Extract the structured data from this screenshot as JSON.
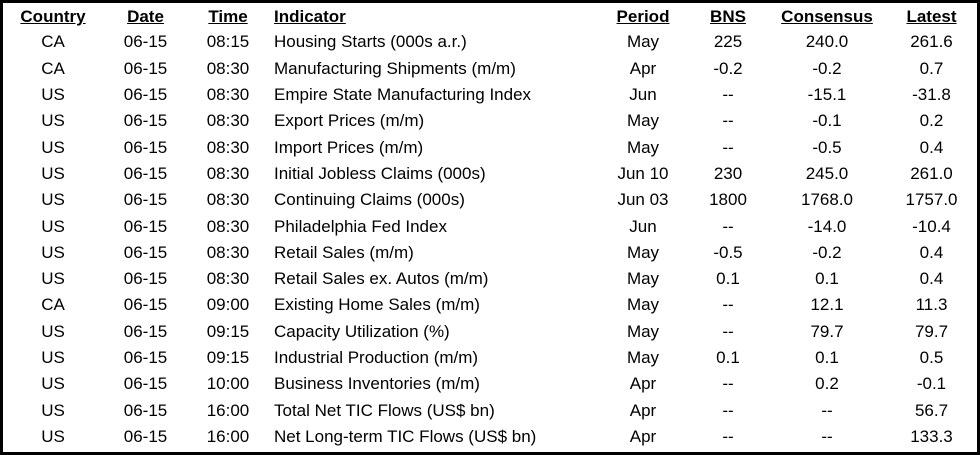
{
  "table": {
    "headers": [
      "Country",
      "Date",
      "Time",
      "Indicator",
      "Period",
      "BNS",
      "Consensus",
      "Latest"
    ],
    "rows": [
      [
        "CA",
        "06-15",
        "08:15",
        "Housing Starts (000s a.r.)",
        "May",
        "225",
        "240.0",
        "261.6"
      ],
      [
        "CA",
        "06-15",
        "08:30",
        "Manufacturing Shipments (m/m)",
        "Apr",
        "-0.2",
        "-0.2",
        "0.7"
      ],
      [
        "US",
        "06-15",
        "08:30",
        "Empire State Manufacturing Index",
        "Jun",
        "--",
        "-15.1",
        "-31.8"
      ],
      [
        "US",
        "06-15",
        "08:30",
        "Export Prices (m/m)",
        "May",
        "--",
        "-0.1",
        "0.2"
      ],
      [
        "US",
        "06-15",
        "08:30",
        "Import Prices (m/m)",
        "May",
        "--",
        "-0.5",
        "0.4"
      ],
      [
        "US",
        "06-15",
        "08:30",
        "Initial Jobless Claims (000s)",
        "Jun 10",
        "230",
        "245.0",
        "261.0"
      ],
      [
        "US",
        "06-15",
        "08:30",
        "Continuing Claims (000s)",
        "Jun 03",
        "1800",
        "1768.0",
        "1757.0"
      ],
      [
        "US",
        "06-15",
        "08:30",
        "Philadelphia Fed Index",
        "Jun",
        "--",
        "-14.0",
        "-10.4"
      ],
      [
        "US",
        "06-15",
        "08:30",
        "Retail Sales (m/m)",
        "May",
        "-0.5",
        "-0.2",
        "0.4"
      ],
      [
        "US",
        "06-15",
        "08:30",
        "Retail Sales ex. Autos (m/m)",
        "May",
        "0.1",
        "0.1",
        "0.4"
      ],
      [
        "CA",
        "06-15",
        "09:00",
        "Existing Home Sales (m/m)",
        "May",
        "--",
        "12.1",
        "11.3"
      ],
      [
        "US",
        "06-15",
        "09:15",
        "Capacity Utilization (%)",
        "May",
        "--",
        "79.7",
        "79.7"
      ],
      [
        "US",
        "06-15",
        "09:15",
        "Industrial Production (m/m)",
        "May",
        "0.1",
        "0.1",
        "0.5"
      ],
      [
        "US",
        "06-15",
        "10:00",
        "Business Inventories (m/m)",
        "Apr",
        "--",
        "0.2",
        "-0.1"
      ],
      [
        "US",
        "06-15",
        "16:00",
        "Total Net TIC Flows (US$ bn)",
        "Apr",
        "--",
        "--",
        "56.7"
      ],
      [
        "US",
        "06-15",
        "16:00",
        "Net Long-term TIC Flows (US$ bn)",
        "Apr",
        "--",
        "--",
        "133.3"
      ]
    ]
  },
  "colors": {
    "border": "#000000",
    "text": "#000000",
    "background": "#ffffff"
  }
}
